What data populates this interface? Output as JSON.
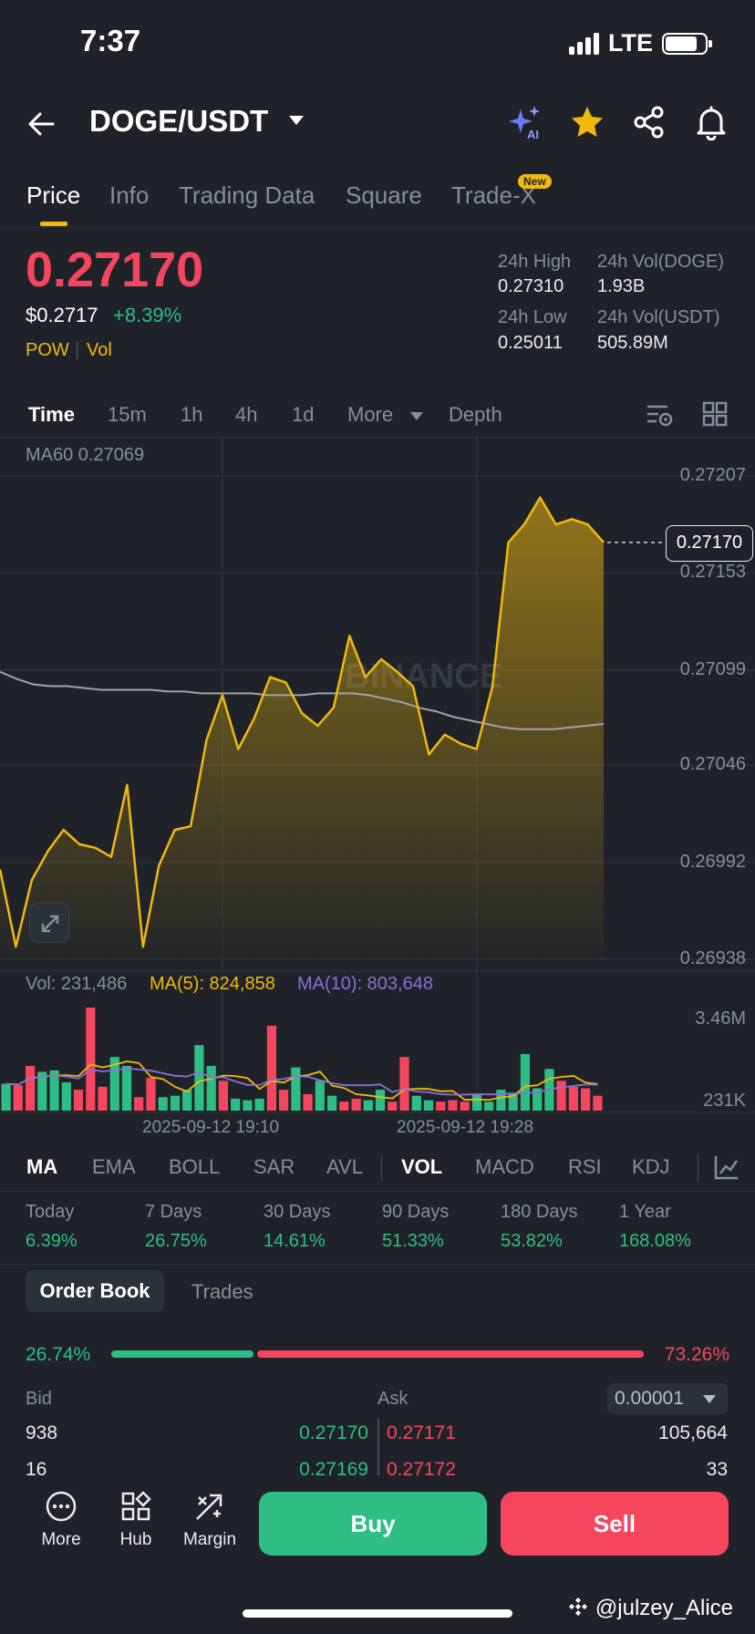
{
  "status": {
    "time": "7:37",
    "network": "LTE"
  },
  "header": {
    "pair": "DOGE/USDT",
    "icons": [
      "back-arrow-icon",
      "chevron-down-icon",
      "ai-sparkle-icon",
      "star-icon",
      "share-icon",
      "bell-icon"
    ]
  },
  "tabs": [
    {
      "label": "Price"
    },
    {
      "label": "Info"
    },
    {
      "label": "Trading Data"
    },
    {
      "label": "Square"
    },
    {
      "label": "Trade-X",
      "badge": "New"
    }
  ],
  "price": {
    "last": "0.27170",
    "usd": "$0.2717",
    "change": "+8.39%",
    "tags": [
      "POW",
      "Vol"
    ]
  },
  "stats": {
    "high_label": "24h High",
    "high": "0.27310",
    "low_label": "24h Low",
    "low": "0.25011",
    "vol_base_label": "24h Vol(DOGE)",
    "vol_base": "1.93B",
    "vol_quote_label": "24h Vol(USDT)",
    "vol_quote": "505.89M"
  },
  "timebar": [
    "Time",
    "15m",
    "1h",
    "4h",
    "1d",
    "More",
    "Depth"
  ],
  "chart": {
    "ma60_label": "MA60 0.27069",
    "watermark": "BINANCE",
    "current_price_tag": "0.27170",
    "volume_legend": {
      "vol": "Vol: 231,486",
      "ma5": "MA(5): 824,858",
      "ma10": "MA(10): 803,648"
    },
    "colors": {
      "line": "#f0b90b",
      "ma60": "#9ea3aa",
      "up": "#2ebd85",
      "down": "#f6465d",
      "ma5": "#f0b90b",
      "ma10": "#8a6fd6"
    }
  },
  "chart_data": {
    "type": "line",
    "price_axis_ticks": [
      "0.27207",
      "0.27153",
      "0.27099",
      "0.27046",
      "0.26992",
      "0.26938"
    ],
    "ylim": [
      0.26938,
      0.27207
    ],
    "time_ticks": [
      "2025-09-12 19:10",
      "2025-09-12 19:28"
    ],
    "price_series": [
      0.26988,
      0.26945,
      0.26982,
      0.26998,
      0.2701,
      0.27002,
      0.27,
      0.26995,
      0.27035,
      0.26945,
      0.2699,
      0.2701,
      0.27012,
      0.2706,
      0.27085,
      0.27055,
      0.27072,
      0.27095,
      0.27092,
      0.27075,
      0.27068,
      0.27078,
      0.27118,
      0.27095,
      0.27105,
      0.27098,
      0.2709,
      0.27052,
      0.27063,
      0.27058,
      0.27055,
      0.2709,
      0.2717,
      0.2718,
      0.27195,
      0.2718,
      0.27183,
      0.2718,
      0.2717
    ],
    "ma60_series": [
      0.27098,
      0.27094,
      0.27091,
      0.2709,
      0.2709,
      0.27089,
      0.27088,
      0.27088,
      0.27088,
      0.27088,
      0.27087,
      0.27087,
      0.27086,
      0.27086,
      0.27086,
      0.27086,
      0.27085,
      0.27085,
      0.27085,
      0.27086,
      0.27086,
      0.27086,
      0.27085,
      0.27083,
      0.27081,
      0.27078,
      0.27076,
      0.27073,
      0.27071,
      0.27069,
      0.27067,
      0.27066,
      0.27066,
      0.27066,
      0.27067,
      0.27068,
      0.27069
    ],
    "volume_axis_ticks": [
      "3.46M",
      "231K"
    ],
    "volume_ylim": [
      0,
      3460000
    ],
    "volume_series": [
      {
        "v": 900000,
        "up": true
      },
      {
        "v": 850000,
        "up": false
      },
      {
        "v": 1500000,
        "up": false
      },
      {
        "v": 1300000,
        "up": true
      },
      {
        "v": 1350000,
        "up": true
      },
      {
        "v": 950000,
        "up": true
      },
      {
        "v": 700000,
        "up": false
      },
      {
        "v": 3460000,
        "up": false
      },
      {
        "v": 800000,
        "up": false
      },
      {
        "v": 1800000,
        "up": true
      },
      {
        "v": 1500000,
        "up": true
      },
      {
        "v": 450000,
        "up": false
      },
      {
        "v": 1100000,
        "up": false
      },
      {
        "v": 450000,
        "up": true
      },
      {
        "v": 500000,
        "up": true
      },
      {
        "v": 700000,
        "up": true
      },
      {
        "v": 2200000,
        "up": true
      },
      {
        "v": 1500000,
        "up": true
      },
      {
        "v": 1000000,
        "up": false
      },
      {
        "v": 400000,
        "up": true
      },
      {
        "v": 350000,
        "up": true
      },
      {
        "v": 400000,
        "up": true
      },
      {
        "v": 2850000,
        "up": false
      },
      {
        "v": 700000,
        "up": false
      },
      {
        "v": 1450000,
        "up": true
      },
      {
        "v": 550000,
        "up": false
      },
      {
        "v": 1000000,
        "up": true
      },
      {
        "v": 500000,
        "up": true
      },
      {
        "v": 300000,
        "up": false
      },
      {
        "v": 400000,
        "up": false
      },
      {
        "v": 350000,
        "up": true
      },
      {
        "v": 700000,
        "up": true
      },
      {
        "v": 300000,
        "up": false
      },
      {
        "v": 1800000,
        "up": false
      },
      {
        "v": 500000,
        "up": true
      },
      {
        "v": 350000,
        "up": true
      },
      {
        "v": 300000,
        "up": false
      },
      {
        "v": 350000,
        "up": false
      },
      {
        "v": 300000,
        "up": false
      },
      {
        "v": 550000,
        "up": true
      },
      {
        "v": 300000,
        "up": true
      },
      {
        "v": 700000,
        "up": true
      },
      {
        "v": 600000,
        "up": true
      },
      {
        "v": 1900000,
        "up": true
      },
      {
        "v": 750000,
        "up": true
      },
      {
        "v": 1400000,
        "up": true
      },
      {
        "v": 1000000,
        "up": false
      },
      {
        "v": 800000,
        "up": false
      },
      {
        "v": 750000,
        "up": false
      },
      {
        "v": 500000,
        "up": false
      }
    ]
  },
  "indicators": [
    "MA",
    "EMA",
    "BOLL",
    "SAR",
    "AVL",
    "VOL",
    "MACD",
    "RSI",
    "KDJ"
  ],
  "performance": [
    {
      "label": "Today",
      "value": "6.39%"
    },
    {
      "label": "7 Days",
      "value": "26.75%"
    },
    {
      "label": "30 Days",
      "value": "14.61%"
    },
    {
      "label": "90 Days",
      "value": "51.33%"
    },
    {
      "label": "180 Days",
      "value": "53.82%"
    },
    {
      "label": "1 Year",
      "value": "168.08%"
    }
  ],
  "orderbook": {
    "tabs": [
      "Order Book",
      "Trades"
    ],
    "bid_ratio": "26.74%",
    "ask_ratio": "73.26%",
    "bid_fraction": 0.2674,
    "bid_label": "Bid",
    "ask_label": "Ask",
    "tick": "0.00001",
    "rows": [
      {
        "bid_qty": "938",
        "bid_price": "0.27170",
        "ask_price": "0.27171",
        "ask_qty": "105,664"
      },
      {
        "bid_qty": "16",
        "bid_price": "0.27169",
        "ask_price": "0.27172",
        "ask_qty": "33"
      }
    ]
  },
  "bottom": {
    "more": "More",
    "hub": "Hub",
    "margin": "Margin",
    "buy": "Buy",
    "sell": "Sell"
  },
  "watermark": "@julzey_Alice"
}
